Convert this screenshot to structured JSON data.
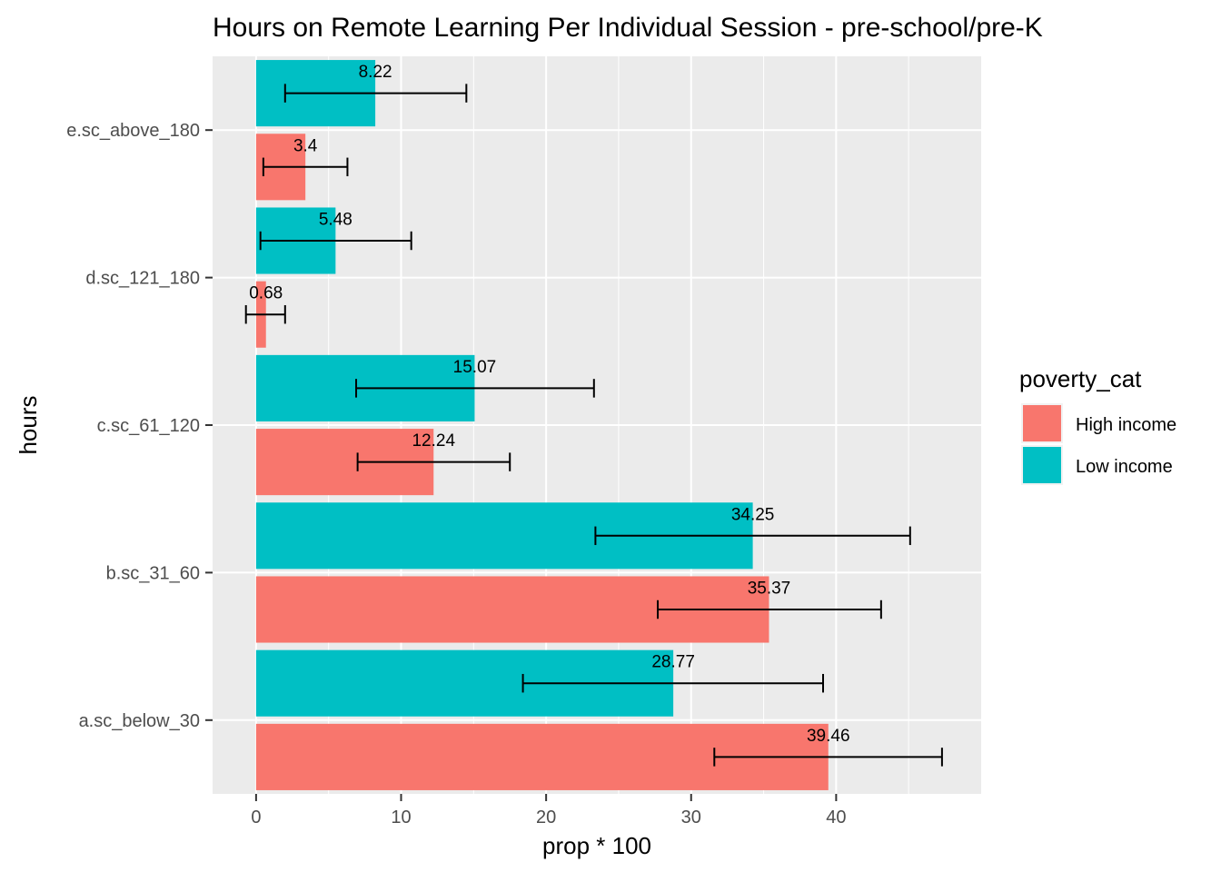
{
  "chart_data": {
    "type": "bar",
    "orientation": "horizontal",
    "title": "Hours on Remote Learning Per Individual Session - pre-school/pre-K",
    "xlabel": "prop * 100",
    "ylabel": "hours",
    "xlim": [
      -3,
      50
    ],
    "x_ticks": [
      0,
      10,
      20,
      30,
      40
    ],
    "grid": true,
    "legend_position": "right",
    "legend_title": "poverty_cat",
    "categories": [
      "a.sc_below_30",
      "b.sc_31_60",
      "c.sc_61_120",
      "d.sc_121_180",
      "e.sc_above_180"
    ],
    "series": [
      {
        "name": "High income",
        "color": "#F8766D",
        "values": [
          39.46,
          35.37,
          12.24,
          0.68,
          3.4
        ],
        "labels": [
          "39.46",
          "35.37",
          "12.24",
          "0.68",
          "3.4"
        ],
        "ci_low": [
          31.6,
          27.7,
          7.0,
          -0.7,
          0.5
        ],
        "ci_high": [
          47.3,
          43.1,
          17.5,
          2.0,
          6.3
        ]
      },
      {
        "name": "Low income",
        "color": "#00BFC4",
        "values": [
          28.77,
          34.25,
          15.07,
          5.48,
          8.22
        ],
        "labels": [
          "28.77",
          "34.25",
          "15.07",
          "5.48",
          "8.22"
        ],
        "ci_low": [
          18.4,
          23.4,
          6.9,
          0.3,
          2.0
        ],
        "ci_high": [
          39.1,
          45.1,
          23.3,
          10.7,
          14.5
        ]
      }
    ]
  }
}
